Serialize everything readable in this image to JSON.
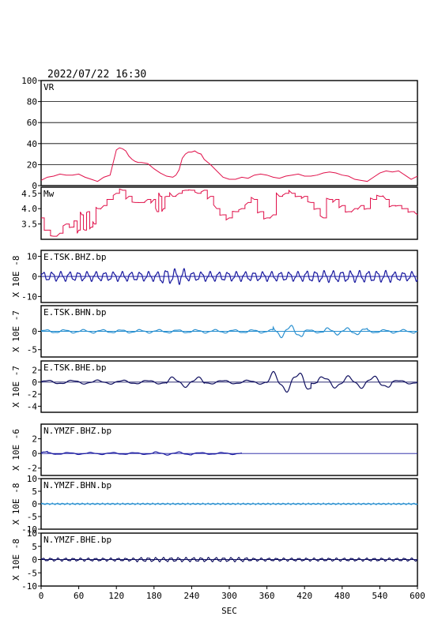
{
  "header": {
    "datetime": "2022/07/22  16:30"
  },
  "x_axis": {
    "label": "SEC",
    "ticks": [
      "0",
      "60",
      "120",
      "180",
      "240",
      "300",
      "360",
      "420",
      "480",
      "540",
      "600"
    ]
  },
  "chart_data": [
    {
      "type": "line",
      "label": "VR",
      "ylim": [
        0,
        100
      ],
      "yticks": [
        "0",
        "20",
        "40",
        "60",
        "80",
        "100"
      ],
      "grid": true,
      "color": "#e0104a",
      "x": [
        0,
        10,
        20,
        30,
        40,
        50,
        60,
        70,
        80,
        90,
        100,
        110,
        115,
        120,
        125,
        130,
        135,
        140,
        145,
        150,
        155,
        160,
        170,
        180,
        190,
        200,
        210,
        215,
        220,
        225,
        230,
        235,
        240,
        245,
        250,
        255,
        260,
        270,
        280,
        290,
        300,
        310,
        320,
        330,
        340,
        350,
        360,
        370,
        380,
        390,
        400,
        410,
        420,
        430,
        440,
        450,
        460,
        470,
        480,
        490,
        500,
        510,
        520,
        530,
        540,
        550,
        560,
        570,
        580,
        590,
        600
      ],
      "values": [
        5,
        8,
        9,
        11,
        10,
        10,
        11,
        8,
        6,
        4,
        8,
        10,
        22,
        34,
        36,
        35,
        33,
        28,
        25,
        23,
        22,
        22,
        21,
        16,
        12,
        9,
        8,
        10,
        15,
        26,
        30,
        32,
        32,
        33,
        31,
        30,
        25,
        20,
        14,
        8,
        6,
        6,
        8,
        7,
        10,
        11,
        10,
        8,
        7,
        9,
        10,
        11,
        9,
        9,
        10,
        12,
        13,
        12,
        10,
        9,
        6,
        5,
        4,
        8,
        12,
        14,
        13,
        14,
        10,
        6,
        9
      ]
    },
    {
      "type": "line",
      "label": "Mw",
      "ylim": [
        3.0,
        4.7
      ],
      "yticks": [
        "3.5",
        "4.0",
        "4.5"
      ],
      "grid": false,
      "color": "#e0104a",
      "x": [
        0,
        10,
        20,
        30,
        40,
        50,
        55,
        60,
        65,
        70,
        75,
        80,
        85,
        90,
        100,
        110,
        120,
        130,
        140,
        150,
        160,
        170,
        180,
        185,
        190,
        195,
        200,
        210,
        220,
        230,
        240,
        250,
        260,
        270,
        280,
        290,
        300,
        310,
        320,
        330,
        340,
        350,
        360,
        370,
        380,
        390,
        400,
        410,
        420,
        430,
        440,
        450,
        460,
        470,
        480,
        490,
        500,
        510,
        520,
        530,
        540,
        550,
        560,
        570,
        580,
        590,
        600
      ],
      "values": [
        3.7,
        3.3,
        3.1,
        3.2,
        3.5,
        3.4,
        3.6,
        3.3,
        3.8,
        3.3,
        3.9,
        3.4,
        3.5,
        4.0,
        4.1,
        4.3,
        4.5,
        4.6,
        4.4,
        4.2,
        4.2,
        4.3,
        4.3,
        3.9,
        4.4,
        4.0,
        4.4,
        4.4,
        4.5,
        4.6,
        4.6,
        4.5,
        4.6,
        4.4,
        4.0,
        3.8,
        3.7,
        3.9,
        4.0,
        4.2,
        4.3,
        3.9,
        3.7,
        3.8,
        4.4,
        4.5,
        4.5,
        4.4,
        4.4,
        4.2,
        4.0,
        3.7,
        4.3,
        4.3,
        4.1,
        3.9,
        4.0,
        4.1,
        4.0,
        4.3,
        4.4,
        4.3,
        4.1,
        4.1,
        4.0,
        3.9,
        3.8
      ]
    },
    {
      "type": "line",
      "label": "E.TSK.BHZ.bp",
      "unit": "X 10E -8",
      "ylim": [
        -13,
        13
      ],
      "yticks": [
        "-10",
        "0",
        "10"
      ],
      "grid": false,
      "color": "#1a1aa0",
      "waveform": {
        "amplitude": 2.5,
        "period_sec": 14,
        "segments": [
          [
            0,
            600
          ]
        ],
        "bursts": [
          [
            190,
            230,
            1.6
          ],
          [
            420,
            560,
            1.2
          ]
        ]
      }
    },
    {
      "type": "line",
      "label": "E.TSK.BHN.bp",
      "unit": "X 10E -7",
      "ylim": [
        -7,
        7
      ],
      "yticks": [
        "-5",
        "0"
      ],
      "grid": false,
      "color": "#2a90d0",
      "waveform": {
        "amplitude": 0.5,
        "period_sec": 30,
        "segments": [
          [
            0,
            600
          ]
        ],
        "bursts": [
          [
            370,
            420,
            3.5
          ],
          [
            450,
            520,
            2.0
          ]
        ]
      }
    },
    {
      "type": "line",
      "label": "E.TSK.BHE.bp",
      "unit": "X 10E -7",
      "ylim": [
        -5,
        3.5
      ],
      "yticks": [
        "-4",
        "-2",
        "0",
        "2"
      ],
      "grid": false,
      "color": "#101060",
      "waveform": {
        "amplitude": 0.35,
        "period_sec": 40,
        "segments": [
          [
            0,
            600
          ]
        ],
        "bursts": [
          [
            200,
            260,
            2.5
          ],
          [
            360,
            430,
            5.0
          ],
          [
            440,
            560,
            3.0
          ]
        ]
      }
    },
    {
      "type": "line",
      "label": "N.YMZF.BHZ.bp",
      "unit": "X 10E -6",
      "ylim": [
        -3,
        4
      ],
      "yticks": [
        "-2",
        "0",
        "2"
      ],
      "grid": false,
      "color": "#1a1aa0",
      "waveform": {
        "amplitude": 0.15,
        "period_sec": 35,
        "segments": [
          [
            0,
            320
          ]
        ],
        "bursts": [
          [
            0,
            10,
            2.5
          ],
          [
            180,
            240,
            1.5
          ]
        ]
      },
      "flatline_after": 320
    },
    {
      "type": "line",
      "label": "N.YMZF.BHN.bp",
      "unit": "X 10E -8",
      "ylim": [
        -10,
        10
      ],
      "yticks": [
        "-10",
        "-5",
        "0",
        "5",
        "10"
      ],
      "grid": false,
      "color": "#2a90d0",
      "waveform": {
        "amplitude": 0.3,
        "period_sec": 8,
        "segments": [
          [
            0,
            600
          ]
        ],
        "bursts": []
      }
    },
    {
      "type": "line",
      "label": "N.YMZF.BHE.bp",
      "unit": "X 10E -8",
      "ylim": [
        -10,
        10
      ],
      "yticks": [
        "-10",
        "-5",
        "0",
        "5",
        "10"
      ],
      "grid": false,
      "color": "#101060",
      "waveform": {
        "amplitude": 0.6,
        "period_sec": 12,
        "segments": [
          [
            0,
            600
          ]
        ],
        "bursts": [
          [
            150,
            330,
            1.4
          ]
        ]
      }
    }
  ]
}
